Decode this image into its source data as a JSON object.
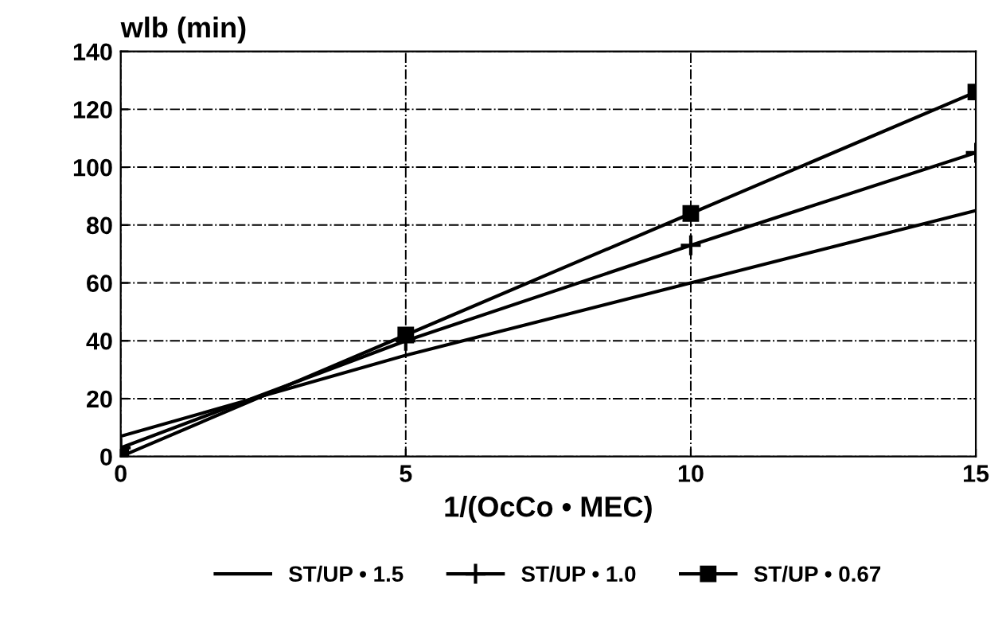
{
  "chart_data": {
    "type": "line",
    "xlabel": "1/(OcCo • MEC)",
    "ylabel": "wlb (min)",
    "x": [
      0,
      5,
      10,
      15
    ],
    "series": [
      {
        "name": "ST/UP • 1.5",
        "color": "#000000",
        "marker": "none",
        "values": [
          7,
          35,
          60,
          85
        ]
      },
      {
        "name": "ST/UP • 1.0",
        "color": "#000000",
        "marker": "cross",
        "values": [
          3,
          40,
          73,
          105
        ]
      },
      {
        "name": "ST/UP • 0.67",
        "color": "#000000",
        "marker": "square",
        "values": [
          0,
          42,
          84,
          126
        ]
      }
    ],
    "xlim": [
      0,
      15
    ],
    "xticks": [
      0,
      5,
      10,
      15
    ],
    "ylim": [
      0,
      140
    ],
    "yticks": [
      0,
      20,
      40,
      60,
      80,
      100,
      120,
      140
    ],
    "grid": true,
    "legend": "bottom",
    "line_style": "solid"
  }
}
